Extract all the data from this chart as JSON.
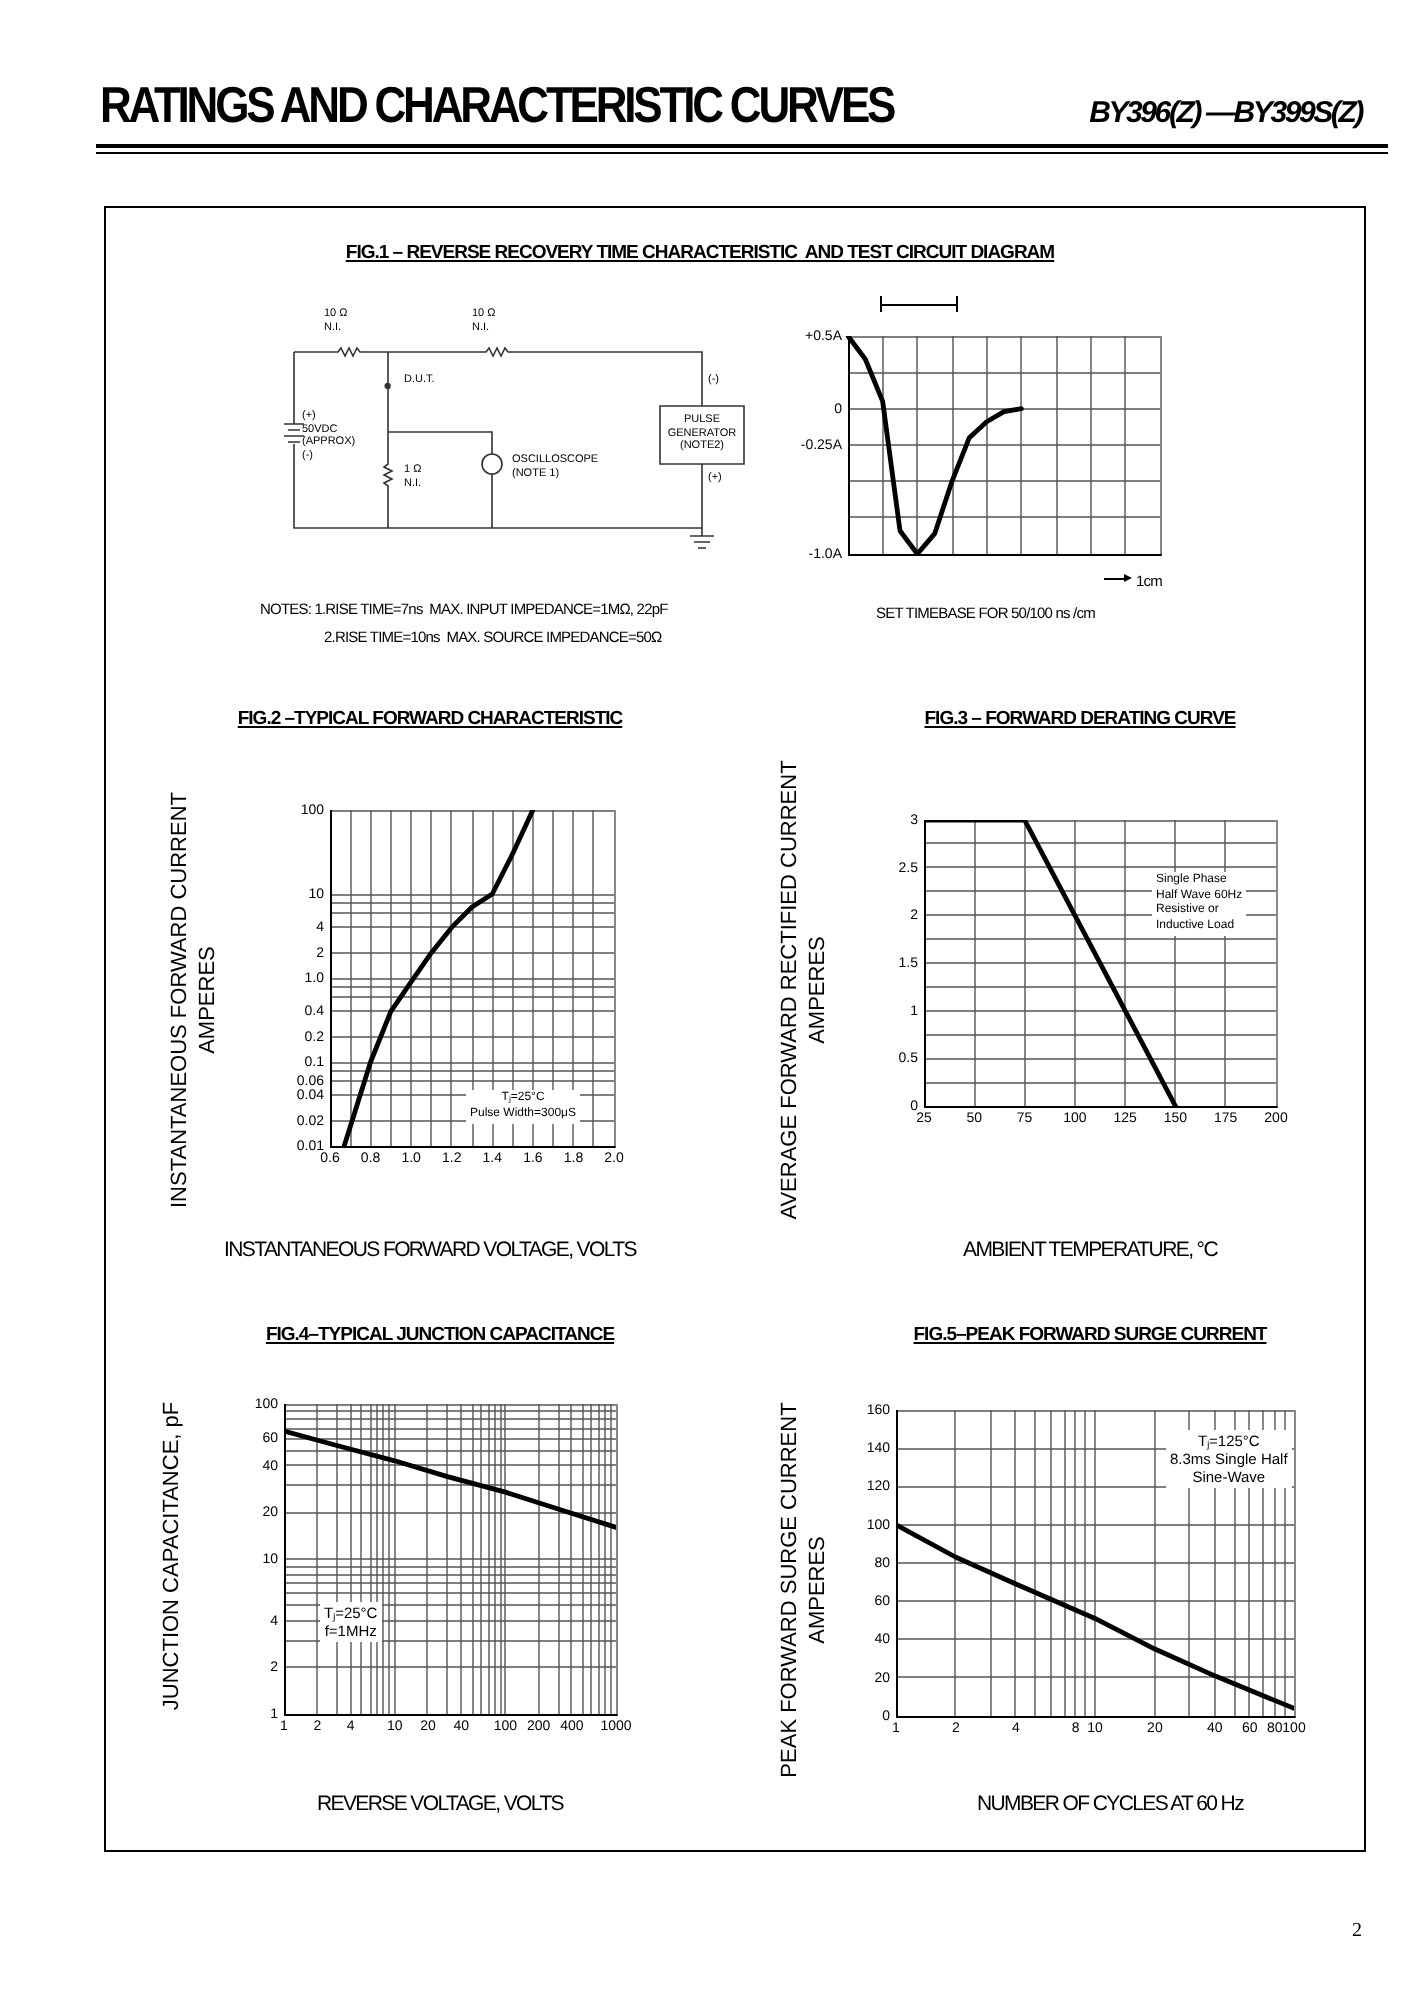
{
  "chart_data": [
    {
      "type": "other",
      "title": "RATINGS AND CHARACTERISTIC CURVES",
      "annotations": [
        "BY396(Z) —BY399S(Z)",
        "2"
      ]
    },
    {
      "type": "other",
      "title": "FIG.1 – REVERSE RECOVERY TIME CHARACTERISTIC  AND TEST CIRCUIT DIAGRAM",
      "annotations": [
        "10 Ω\nN.I.",
        "10 Ω\nN.I.",
        "D.U.T.",
        "(+)\n50VDC\n(APPROX)\n(-)",
        "1 Ω\nN.I.",
        "OSCILLOSCOPE\n(NOTE 1)",
        "PULSE\nGENERATOR\n(NOTE2)",
        "(-)",
        "(+)",
        "NOTES: 1.RISE TIME=7ns  MAX. INPUT IMPEDANCE=1MΩ, 22pF",
        "2.RISE TIME=10ns  MAX. SOURCE IMPEDANCE=50Ω"
      ]
    },
    {
      "type": "line",
      "categories": [
        null,
        null,
        null,
        null,
        null,
        null,
        null,
        null,
        null,
        null,
        null,
        null,
        null,
        null,
        null,
        null,
        null,
        null,
        null
      ],
      "series": [
        {
          "color": "#000000",
          "values": [
            0.5,
            0.34,
            0.05,
            -0.84,
            -1.0,
            -0.86,
            -0.5,
            -0.2,
            -0.09,
            -0.02,
            0,
            null,
            null,
            null,
            null,
            null,
            null,
            null,
            null
          ]
        }
      ],
      "ylim": [
        -1.0,
        0.5
      ],
      "yticks": [
        {
          "value": 0.5,
          "label": "+0.5A"
        },
        {
          "value": 0.25,
          "label": null
        },
        0,
        {
          "value": -0.25,
          "label": "-0.25A"
        },
        {
          "value": -0.5,
          "label": null
        },
        {
          "value": -0.75,
          "label": null
        },
        {
          "value": -1.0,
          "label": "-1.0A"
        }
      ],
      "grid": true,
      "tick_labels": "y",
      "marker": "none",
      "annotations": [
        "SET TIMEBASE FOR 50/100 ns /cm",
        "1cm"
      ]
    },
    {
      "type": "line",
      "title": "FIG.2 –TYPICAL FORWARD CHARACTERISTIC",
      "xlabel": "INSTANTANEOUS FORWARD VOLTAGE, VOLTS",
      "ylabel": "INSTANTANEOUS FORWARD CURRENT\nAMPERES",
      "series": [
        {
          "color": "#000000",
          "x": [
            0.67,
            0.8,
            0.9,
            1.0,
            1.1,
            1.2,
            1.3,
            1.4,
            1.5,
            1.6
          ],
          "values": [
            0.01,
            0.1,
            0.4,
            0.9,
            2,
            4,
            7,
            10,
            30,
            100
          ]
        }
      ],
      "xlim": [
        0.6,
        2.0
      ],
      "xticks": [
        0.6,
        {
          "value": 0.7,
          "label": null
        },
        0.8,
        {
          "value": 0.9,
          "label": null
        },
        {
          "value": 1.0,
          "label": "1.0"
        },
        {
          "value": 1.1,
          "label": null
        },
        1.2,
        {
          "value": 1.3,
          "label": null
        },
        1.4,
        {
          "value": 1.5,
          "label": null
        },
        1.6,
        {
          "value": 1.7,
          "label": null
        },
        1.8,
        {
          "value": 1.9,
          "label": null
        },
        {
          "value": 2.0,
          "label": "2.0"
        }
      ],
      "ylim": [
        0.01,
        100
      ],
      "yticks": [
        0.01,
        0.02,
        0.04,
        0.06,
        {
          "value": 0.08,
          "label": null
        },
        0.1,
        0.2,
        0.4,
        {
          "value": 0.6,
          "label": null
        },
        {
          "value": 0.8,
          "label": null
        },
        {
          "value": 1,
          "label": "1.0"
        },
        2,
        4,
        {
          "value": 6,
          "label": null
        },
        {
          "value": 8,
          "label": null
        },
        10,
        100
      ],
      "log": "y",
      "grid": true,
      "marker": "none",
      "annotations": [
        "Tⱼ=25°C\nPulse Width=300μS"
      ]
    },
    {
      "type": "line",
      "title": "FIG.3 – FORWARD DERATING CURVE",
      "xlabel": "AMBIENT TEMPERATURE, °C",
      "ylabel": "AVERAGE FORWARD RECTIFIED CURRENT\nAMPERES",
      "series": [
        {
          "color": "#000000",
          "x": [
            25,
            75,
            150
          ],
          "values": [
            3,
            3,
            0
          ]
        }
      ],
      "xlim": [
        25,
        200
      ],
      "xticks": [
        25,
        50,
        75,
        100,
        125,
        150,
        175,
        200
      ],
      "ylim": [
        0,
        3
      ],
      "yticks": [
        0,
        {
          "value": 0.25,
          "label": null
        },
        0.5,
        {
          "value": 0.75,
          "label": null
        },
        1,
        {
          "value": 1.25,
          "label": null
        },
        1.5,
        {
          "value": 1.75,
          "label": null
        },
        2,
        {
          "value": 2.25,
          "label": null
        },
        2.5,
        {
          "value": 2.75,
          "label": null
        },
        3
      ],
      "grid": true,
      "marker": "none",
      "annotations": [
        "Single Phase\nHalf Wave 60Hz\nResistive or\nInductive Load"
      ]
    },
    {
      "type": "line",
      "title": "FIG.4–TYPICAL JUNCTION CAPACITANCE",
      "xlabel": "REVERSE VOLTAGE, VOLTS",
      "ylabel": "JUNCTION CAPACITANCE, pF",
      "series": [
        {
          "color": "#000000",
          "x": [
            1,
            3,
            10,
            30,
            100,
            300,
            1000
          ],
          "values": [
            67,
            54,
            43,
            34,
            27,
            21,
            16
          ]
        }
      ],
      "xlim": [
        1,
        1000
      ],
      "xticks": [
        1,
        2,
        {
          "value": 3,
          "label": null
        },
        4,
        {
          "value": 5,
          "label": null
        },
        {
          "value": 6,
          "label": null
        },
        {
          "value": 7,
          "label": null
        },
        {
          "value": 8,
          "label": null
        },
        {
          "value": 9,
          "label": null
        },
        10,
        20,
        {
          "value": 30,
          "label": null
        },
        40,
        {
          "value": 50,
          "label": null
        },
        {
          "value": 60,
          "label": null
        },
        {
          "value": 70,
          "label": null
        },
        {
          "value": 80,
          "label": null
        },
        {
          "value": 90,
          "label": null
        },
        100,
        200,
        {
          "value": 300,
          "label": null
        },
        400,
        {
          "value": 500,
          "label": null
        },
        {
          "value": 600,
          "label": null
        },
        {
          "value": 700,
          "label": null
        },
        {
          "value": 800,
          "label": null
        },
        {
          "value": 900,
          "label": null
        },
        1000
      ],
      "ylim": [
        1,
        100
      ],
      "yticks": [
        1,
        2,
        {
          "value": 3,
          "label": null
        },
        4,
        {
          "value": 5,
          "label": null
        },
        {
          "value": 6,
          "label": null
        },
        {
          "value": 7,
          "label": null
        },
        {
          "value": 8,
          "label": null
        },
        {
          "value": 9,
          "label": null
        },
        10,
        20,
        {
          "value": 30,
          "label": null
        },
        40,
        {
          "value": 50,
          "label": null
        },
        60,
        {
          "value": 70,
          "label": null
        },
        {
          "value": 80,
          "label": null
        },
        {
          "value": 90,
          "label": null
        },
        100
      ],
      "log": "xy",
      "grid": true,
      "marker": "none",
      "annotations": [
        "Tⱼ=25°C\nf=1MHz"
      ]
    },
    {
      "type": "line",
      "title": "FIG.5–PEAK FORWARD SURGE CURRENT",
      "xlabel": "NUMBER OF CYCLES AT 60 Hz",
      "ylabel": "PEAK FORWARD SURGE CURRENT\nAMPERES",
      "series": [
        {
          "color": "#000000",
          "x": [
            1,
            2,
            4,
            10,
            20,
            40,
            100
          ],
          "values": [
            100,
            83,
            69,
            51,
            35,
            21,
            4
          ]
        }
      ],
      "xlim": [
        1,
        100
      ],
      "xticks": [
        1,
        2,
        {
          "value": 3,
          "label": null
        },
        4,
        {
          "value": 5,
          "label": null
        },
        {
          "value": 6,
          "label": null
        },
        {
          "value": 7,
          "label": null
        },
        8,
        {
          "value": 9,
          "label": null
        },
        10,
        20,
        {
          "value": 30,
          "label": null
        },
        40,
        {
          "value": 50,
          "label": null
        },
        60,
        {
          "value": 70,
          "label": null
        },
        80,
        {
          "value": 90,
          "label": null
        },
        100
      ],
      "ylim": [
        0,
        160
      ],
      "yticks": [
        0,
        20,
        40,
        60,
        80,
        100,
        120,
        140,
        160
      ],
      "log": "x",
      "grid": true,
      "marker": "none",
      "annotations": [
        "Tⱼ=125°C\n8.3ms Single Half\nSine-Wave"
      ]
    }
  ]
}
